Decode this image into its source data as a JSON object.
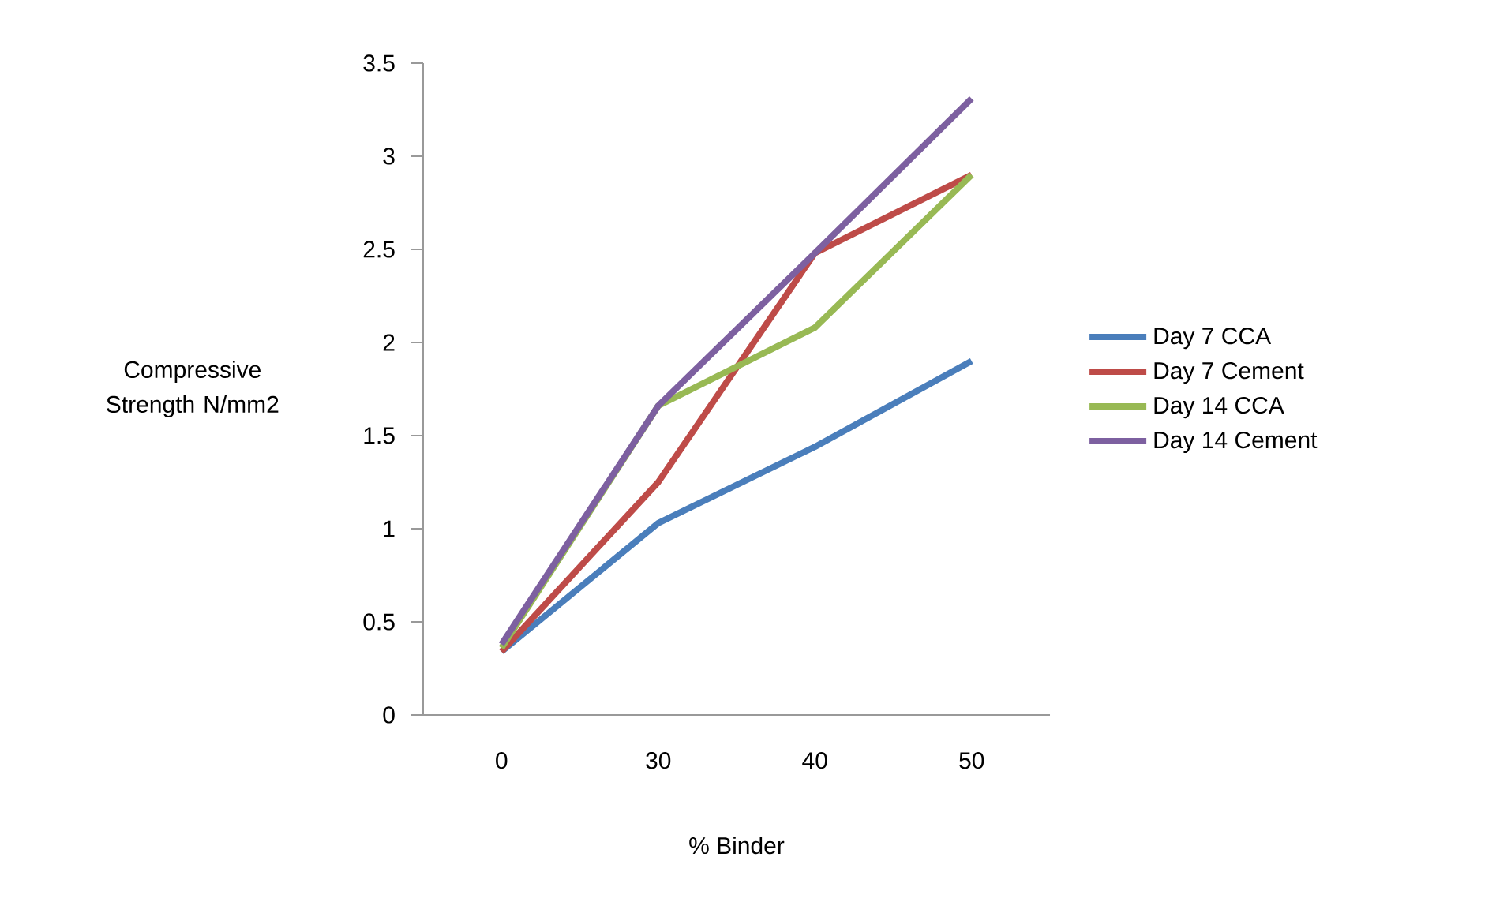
{
  "chart_data": {
    "type": "line",
    "xlabel": "% Binder",
    "ylabel": "Compressive Strength N/mm2",
    "categories": [
      "0",
      "30",
      "40",
      "50"
    ],
    "series": [
      {
        "name": "Day 7 CCA",
        "color": "#4a7ebb",
        "values": [
          0.34,
          1.03,
          1.44,
          1.9
        ]
      },
      {
        "name": "Day 7 Cement",
        "color": "#be4b48",
        "values": [
          0.34,
          1.25,
          2.48,
          2.9
        ]
      },
      {
        "name": "Day 14 CCA",
        "color": "#98b954",
        "values": [
          0.36,
          1.66,
          2.08,
          2.9
        ]
      },
      {
        "name": "Day 14 Cement",
        "color": "#7d60a0",
        "values": [
          0.38,
          1.66,
          2.48,
          3.31
        ]
      }
    ],
    "ylim": [
      0,
      3.5
    ],
    "yticks": [
      0,
      0.5,
      1,
      1.5,
      2,
      2.5,
      3,
      3.5
    ],
    "grid": false,
    "legend": "right",
    "marker": "none",
    "line_style": "solid"
  }
}
